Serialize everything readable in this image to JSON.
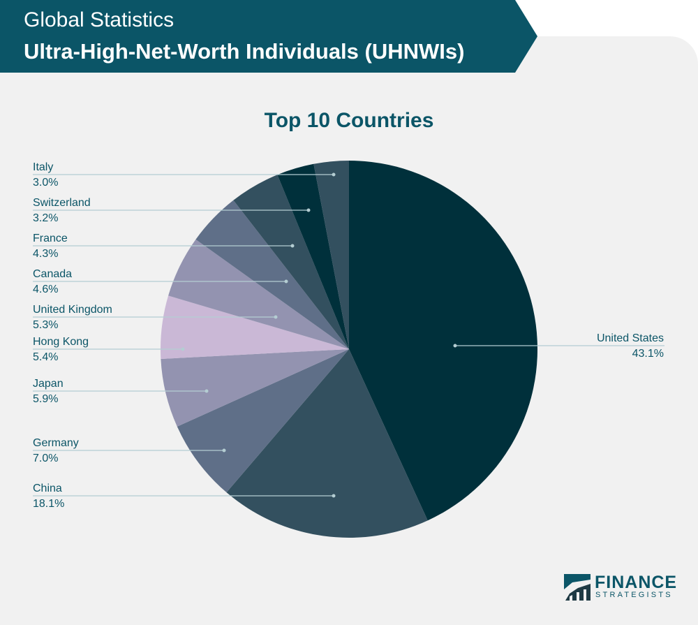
{
  "header": {
    "subtitle": "Global Statistics",
    "title": "Ultra-High-Net-Worth Individuals (UHNWIs)"
  },
  "chart_data": {
    "type": "pie",
    "title": "Top 10 Countries",
    "categories": [
      "United States",
      "China",
      "Germany",
      "Japan",
      "Hong Kong",
      "United Kingdom",
      "Canada",
      "France",
      "Switzerland",
      "Italy"
    ],
    "values": [
      43.1,
      18.1,
      7.0,
      5.9,
      5.4,
      5.3,
      4.6,
      4.3,
      3.2,
      3.0
    ],
    "labels": [
      "43.1%",
      "18.1%",
      "7.0%",
      "5.9%",
      "5.4%",
      "5.3%",
      "4.6%",
      "4.3%",
      "3.2%",
      "3.0%"
    ],
    "colors": [
      "#00303b",
      "#33505f",
      "#5f6f88",
      "#9393b0",
      "#cab8d6",
      "#9393b0",
      "#5f6f88",
      "#33505f",
      "#00303b",
      "#33505f"
    ],
    "start": "top",
    "direction": "clockwise"
  },
  "logo": {
    "line1": "FINANCE",
    "line2": "STRATEGISTS"
  }
}
